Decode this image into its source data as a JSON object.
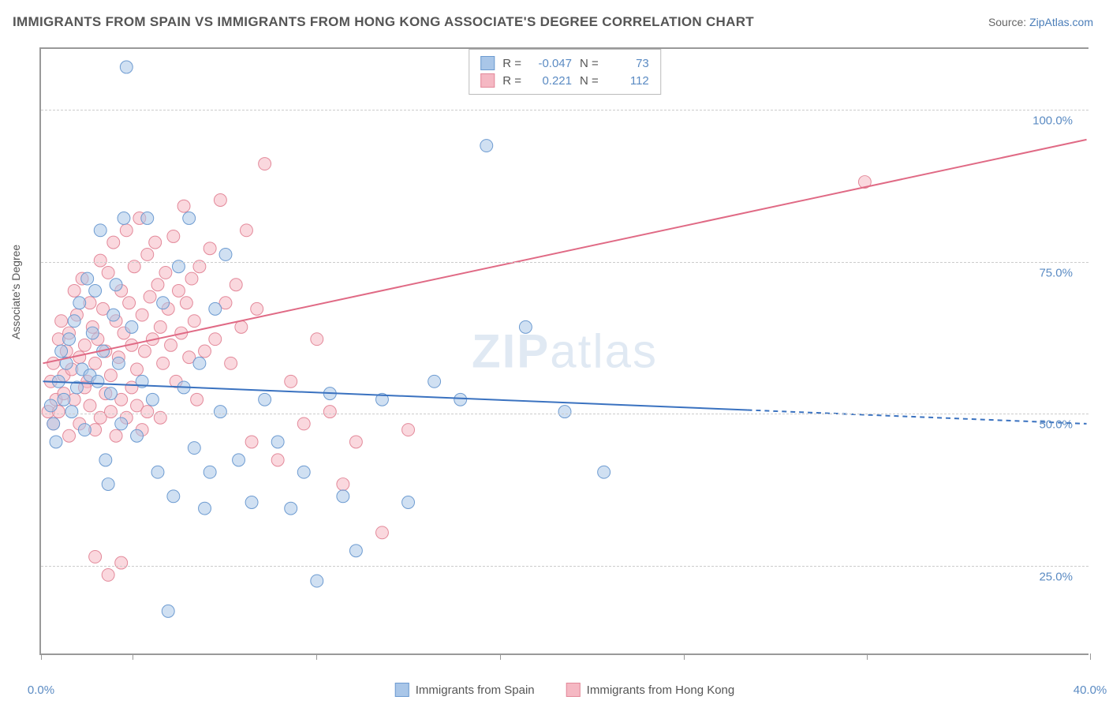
{
  "title": "IMMIGRANTS FROM SPAIN VS IMMIGRANTS FROM HONG KONG ASSOCIATE'S DEGREE CORRELATION CHART",
  "source_label": "Source: ",
  "source_name": "ZipAtlas.com",
  "y_axis_label": "Associate's Degree",
  "watermark1": "ZIP",
  "watermark2": "atlas",
  "chart": {
    "type": "scatter",
    "xlim": [
      0,
      40
    ],
    "ylim": [
      10,
      110
    ],
    "x_ticks": [
      0,
      3.5,
      10.5,
      17.5,
      24.5,
      31.5,
      40
    ],
    "x_tick_labels_shown": {
      "0": "0.0%",
      "40": "40.0%"
    },
    "y_ticks": [
      25,
      50,
      75,
      100
    ],
    "y_tick_labels": [
      "25.0%",
      "50.0%",
      "75.0%",
      "100.0%"
    ],
    "grid_color": "#cccccc",
    "background_color": "#ffffff",
    "axis_color": "#999999",
    "tick_label_color": "#5b8bc3",
    "series": [
      {
        "name": "Immigrants from Spain",
        "label": "Immigrants from Spain",
        "color_fill": "#a9c6e8",
        "color_stroke": "#6d9bd1",
        "marker_radius": 8,
        "fill_opacity": 0.55,
        "R": -0.047,
        "N": 73,
        "trend": {
          "x1": 0,
          "y1": 55,
          "x2": 40,
          "y2": 48,
          "solid_until_x": 27,
          "color": "#3a72c0",
          "width": 2
        },
        "points": [
          [
            0.3,
            51
          ],
          [
            0.4,
            48
          ],
          [
            0.5,
            45
          ],
          [
            0.6,
            55
          ],
          [
            0.7,
            60
          ],
          [
            0.8,
            52
          ],
          [
            0.9,
            58
          ],
          [
            1.0,
            62
          ],
          [
            1.1,
            50
          ],
          [
            1.2,
            65
          ],
          [
            1.3,
            54
          ],
          [
            1.4,
            68
          ],
          [
            1.5,
            57
          ],
          [
            1.6,
            47
          ],
          [
            1.7,
            72
          ],
          [
            1.8,
            56
          ],
          [
            1.9,
            63
          ],
          [
            2.0,
            70
          ],
          [
            2.1,
            55
          ],
          [
            2.2,
            80
          ],
          [
            2.3,
            60
          ],
          [
            2.4,
            42
          ],
          [
            2.5,
            38
          ],
          [
            2.6,
            53
          ],
          [
            2.7,
            66
          ],
          [
            2.8,
            71
          ],
          [
            2.9,
            58
          ],
          [
            3.0,
            48
          ],
          [
            3.1,
            82
          ],
          [
            3.2,
            107
          ],
          [
            3.4,
            64
          ],
          [
            3.6,
            46
          ],
          [
            3.8,
            55
          ],
          [
            4.0,
            82
          ],
          [
            4.2,
            52
          ],
          [
            4.4,
            40
          ],
          [
            4.6,
            68
          ],
          [
            4.8,
            17
          ],
          [
            5.0,
            36
          ],
          [
            5.2,
            74
          ],
          [
            5.4,
            54
          ],
          [
            5.6,
            82
          ],
          [
            5.8,
            44
          ],
          [
            6.0,
            58
          ],
          [
            6.2,
            34
          ],
          [
            6.4,
            40
          ],
          [
            6.6,
            67
          ],
          [
            6.8,
            50
          ],
          [
            7.0,
            76
          ],
          [
            7.5,
            42
          ],
          [
            8.0,
            35
          ],
          [
            8.5,
            52
          ],
          [
            9.0,
            45
          ],
          [
            9.5,
            34
          ],
          [
            10.0,
            40
          ],
          [
            10.5,
            22
          ],
          [
            11.0,
            53
          ],
          [
            11.5,
            36
          ],
          [
            12.0,
            27
          ],
          [
            13.0,
            52
          ],
          [
            14.0,
            35
          ],
          [
            15.0,
            55
          ],
          [
            16.0,
            52
          ],
          [
            17.0,
            94
          ],
          [
            18.5,
            64
          ],
          [
            20.0,
            50
          ],
          [
            21.5,
            40
          ]
        ]
      },
      {
        "name": "Immigrants from Hong Kong",
        "label": "Immigrants from Hong Kong",
        "color_fill": "#f5b8c3",
        "color_stroke": "#e3899a",
        "marker_radius": 8,
        "fill_opacity": 0.55,
        "R": 0.221,
        "N": 112,
        "trend": {
          "x1": 0,
          "y1": 58,
          "x2": 40,
          "y2": 95,
          "solid_until_x": 40,
          "color": "#e06a85",
          "width": 2
        },
        "points": [
          [
            0.2,
            50
          ],
          [
            0.3,
            55
          ],
          [
            0.4,
            58
          ],
          [
            0.5,
            52
          ],
          [
            0.6,
            62
          ],
          [
            0.7,
            65
          ],
          [
            0.8,
            56
          ],
          [
            0.9,
            60
          ],
          [
            1.0,
            63
          ],
          [
            1.1,
            57
          ],
          [
            1.2,
            70
          ],
          [
            1.3,
            66
          ],
          [
            1.4,
            59
          ],
          [
            1.5,
            72
          ],
          [
            1.6,
            61
          ],
          [
            1.7,
            55
          ],
          [
            1.8,
            68
          ],
          [
            1.9,
            64
          ],
          [
            2.0,
            58
          ],
          [
            2.1,
            62
          ],
          [
            2.2,
            75
          ],
          [
            2.3,
            67
          ],
          [
            2.4,
            60
          ],
          [
            2.5,
            73
          ],
          [
            2.6,
            56
          ],
          [
            2.7,
            78
          ],
          [
            2.8,
            65
          ],
          [
            2.9,
            59
          ],
          [
            3.0,
            70
          ],
          [
            3.1,
            63
          ],
          [
            3.2,
            80
          ],
          [
            3.3,
            68
          ],
          [
            3.4,
            61
          ],
          [
            3.5,
            74
          ],
          [
            3.6,
            57
          ],
          [
            3.7,
            82
          ],
          [
            3.8,
            66
          ],
          [
            3.9,
            60
          ],
          [
            4.0,
            76
          ],
          [
            4.1,
            69
          ],
          [
            4.2,
            62
          ],
          [
            4.3,
            78
          ],
          [
            4.4,
            71
          ],
          [
            4.5,
            64
          ],
          [
            4.6,
            58
          ],
          [
            4.7,
            73
          ],
          [
            4.8,
            67
          ],
          [
            4.9,
            61
          ],
          [
            5.0,
            79
          ],
          [
            5.1,
            55
          ],
          [
            5.2,
            70
          ],
          [
            5.3,
            63
          ],
          [
            5.4,
            84
          ],
          [
            5.5,
            68
          ],
          [
            5.6,
            59
          ],
          [
            5.7,
            72
          ],
          [
            5.8,
            65
          ],
          [
            5.9,
            52
          ],
          [
            6.0,
            74
          ],
          [
            6.2,
            60
          ],
          [
            6.4,
            77
          ],
          [
            6.6,
            62
          ],
          [
            6.8,
            85
          ],
          [
            7.0,
            68
          ],
          [
            7.2,
            58
          ],
          [
            7.4,
            71
          ],
          [
            7.6,
            64
          ],
          [
            7.8,
            80
          ],
          [
            8.0,
            45
          ],
          [
            8.2,
            67
          ],
          [
            8.5,
            91
          ],
          [
            9.0,
            42
          ],
          [
            9.5,
            55
          ],
          [
            10.0,
            48
          ],
          [
            10.5,
            62
          ],
          [
            11.0,
            50
          ],
          [
            11.5,
            38
          ],
          [
            12.0,
            45
          ],
          [
            13.0,
            30
          ],
          [
            14.0,
            47
          ],
          [
            0.4,
            48
          ],
          [
            0.6,
            50
          ],
          [
            0.8,
            53
          ],
          [
            1.0,
            46
          ],
          [
            1.2,
            52
          ],
          [
            1.4,
            48
          ],
          [
            1.6,
            54
          ],
          [
            1.8,
            51
          ],
          [
            2.0,
            47
          ],
          [
            2.2,
            49
          ],
          [
            2.4,
            53
          ],
          [
            2.6,
            50
          ],
          [
            2.8,
            46
          ],
          [
            3.0,
            52
          ],
          [
            3.2,
            49
          ],
          [
            3.4,
            54
          ],
          [
            3.6,
            51
          ],
          [
            3.8,
            47
          ],
          [
            4.0,
            50
          ],
          [
            4.5,
            49
          ],
          [
            2.0,
            26
          ],
          [
            2.5,
            23
          ],
          [
            3.0,
            25
          ],
          [
            31.5,
            88
          ]
        ]
      }
    ]
  },
  "legend": {
    "stats_labels": {
      "R": "R =",
      "N": "N ="
    }
  }
}
